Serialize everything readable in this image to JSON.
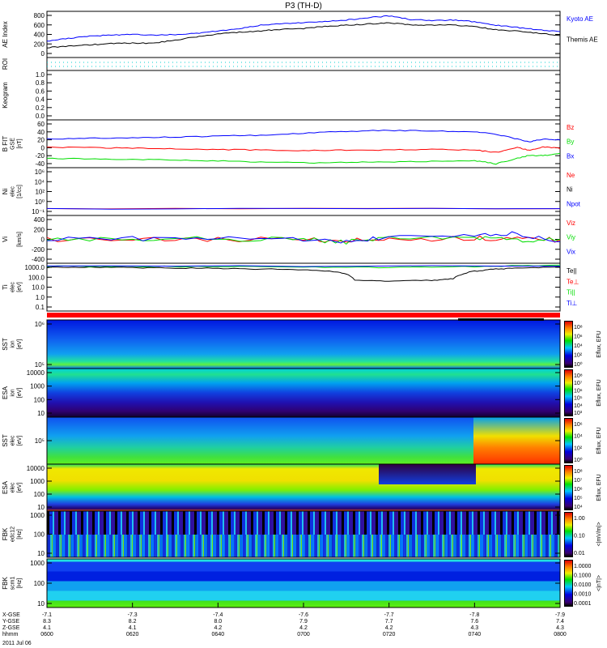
{
  "title": "P3 (TH-D)",
  "chart_data": [
    {
      "type": "line",
      "ylabel": "AE Index",
      "ylim": [
        0,
        800
      ],
      "yticks": [
        "800",
        "600",
        "400",
        "200",
        "0"
      ],
      "series": [
        {
          "name": "Kyoto AE",
          "color": "#0000ff",
          "x": [
            0,
            5,
            10,
            15,
            20,
            25,
            30,
            35,
            40,
            45,
            50,
            55,
            60,
            65,
            70,
            75,
            80,
            85,
            90,
            95,
            100,
            105,
            110,
            115,
            120
          ],
          "values": [
            280,
            330,
            370,
            390,
            400,
            390,
            395,
            420,
            460,
            500,
            560,
            590,
            600,
            620,
            650,
            690,
            720,
            660,
            640,
            650,
            620,
            560,
            520,
            480,
            450
          ]
        },
        {
          "name": "Themis AE",
          "color": "#000000",
          "x": [
            0,
            5,
            10,
            15,
            20,
            25,
            30,
            35,
            40,
            45,
            50,
            55,
            60,
            65,
            70,
            75,
            80,
            85,
            90,
            95,
            100,
            105,
            110,
            115,
            120
          ],
          "values": [
            170,
            200,
            220,
            240,
            250,
            250,
            300,
            360,
            410,
            440,
            460,
            490,
            500,
            540,
            560,
            580,
            600,
            570,
            560,
            560,
            540,
            480,
            460,
            420,
            380
          ]
        }
      ]
    },
    {
      "type": "line",
      "ylabel": "ROI",
      "series": []
    },
    {
      "type": "line",
      "ylabel": "Keogram",
      "ylim": [
        0,
        1
      ],
      "yticks": [
        "1.0",
        "0.8",
        "0.6",
        "0.4",
        "0.2",
        "0.0"
      ],
      "series": []
    },
    {
      "type": "line",
      "ylabel": "B FIT",
      "ylabel2": "GSE",
      "units": "[nT]",
      "ylim": [
        -40,
        60
      ],
      "yticks": [
        "60",
        "40",
        "20",
        "0",
        "-20",
        "-40"
      ],
      "series": [
        {
          "name": "Bz",
          "color": "#ff0000",
          "x": [
            0,
            10,
            20,
            30,
            40,
            50,
            60,
            70,
            80,
            90,
            100,
            105,
            110,
            113,
            116,
            120
          ],
          "values": [
            3,
            2,
            1,
            0,
            -2,
            -3,
            -4,
            -3,
            -3,
            -2,
            -3,
            -8,
            2,
            -4,
            4,
            0
          ],
          "_": 0
        },
        {
          "name": "By",
          "color": "#00dd00",
          "x": [
            0,
            10,
            20,
            30,
            40,
            50,
            60,
            70,
            80,
            90,
            100,
            105,
            110,
            113,
            116,
            120
          ],
          "values": [
            -20,
            -22,
            -23,
            -24,
            -26,
            -28,
            -30,
            -29,
            -28,
            -27,
            -25,
            -32,
            -20,
            -14,
            -15,
            -10
          ]
        },
        {
          "name": "Bx",
          "color": "#0000ff",
          "x": [
            0,
            10,
            20,
            30,
            40,
            50,
            60,
            70,
            80,
            90,
            100,
            105,
            110,
            113,
            116,
            120
          ],
          "values": [
            20,
            22,
            22,
            24,
            26,
            28,
            32,
            36,
            38,
            37,
            35,
            30,
            20,
            14,
            20,
            18
          ]
        }
      ]
    },
    {
      "type": "line",
      "ylabel": "Ni",
      "ylabel2": "elec",
      "units": "[1/cc]",
      "ylim_log10": [
        -1,
        6
      ],
      "yticks": [
        "10⁶",
        "10⁴",
        "10²",
        "10⁰",
        "10⁻¹"
      ],
      "series": [
        {
          "name": "Ne",
          "color": "#ff0000",
          "x": [
            0,
            120
          ],
          "values": [
            1,
            1
          ]
        },
        {
          "name": "Ni",
          "color": "#000000",
          "x": [],
          "values": []
        },
        {
          "name": "Npot",
          "color": "#0000ff",
          "x": [
            0,
            120
          ],
          "values": [
            1,
            1
          ]
        }
      ]
    },
    {
      "type": "line",
      "ylabel": "Vi",
      "units": "[km/s]",
      "ylim": [
        -400,
        400
      ],
      "yticks": [
        "400",
        "200",
        "0",
        "-200",
        "-400"
      ],
      "series": [
        {
          "name": "Viz",
          "color": "#ff0000",
          "x": [
            0,
            20,
            40,
            60,
            70,
            80,
            100,
            110,
            120
          ],
          "values": [
            0,
            5,
            -5,
            0,
            -20,
            0,
            20,
            10,
            -10
          ]
        },
        {
          "name": "Viy",
          "color": "#00dd00",
          "x": [
            0,
            20,
            40,
            60,
            70,
            80,
            100,
            110,
            120
          ],
          "values": [
            10,
            0,
            10,
            0,
            -40,
            10,
            40,
            -30,
            0
          ]
        },
        {
          "name": "Vix",
          "color": "#0000ff",
          "x": [
            0,
            20,
            40,
            60,
            70,
            80,
            100,
            110,
            120
          ],
          "values": [
            0,
            10,
            20,
            -10,
            -30,
            20,
            60,
            100,
            -40
          ]
        }
      ]
    },
    {
      "type": "line",
      "ylabel": "Ti",
      "ylabel2": "elec",
      "units": "[eV]",
      "ylim_log10": [
        -1.3,
        3.6
      ],
      "yticks": [
        "1000.0",
        "100.0",
        "10.0",
        "1.0",
        "0.1"
      ],
      "series": [
        {
          "name": "Te||",
          "color": "#000000",
          "x": [
            0,
            10,
            20,
            30,
            40,
            50,
            60,
            68,
            72,
            80,
            90,
            95,
            100,
            105,
            110,
            120
          ],
          "values": [
            1500,
            1500,
            1400,
            1300,
            1200,
            1000,
            900,
            500,
            80,
            60,
            70,
            100,
            600,
            1000,
            1200,
            1800
          ]
        },
        {
          "name": "Te⊥",
          "color": "#ff0000",
          "x": [],
          "values": []
        },
        {
          "name": "Ti||",
          "color": "#00dd00",
          "x": [
            0,
            20,
            40,
            60,
            80,
            100,
            110,
            120
          ],
          "values": [
            2000,
            1900,
            1800,
            1700,
            1500,
            1800,
            2200,
            2500
          ]
        },
        {
          "name": "Ti⊥",
          "color": "#0000ff",
          "x": [
            0,
            120
          ],
          "values": [
            2000,
            2000
          ]
        }
      ]
    },
    {
      "type": "heatmap",
      "ylabel": "SST",
      "ylabel2": "ion",
      "units": "[eV]",
      "yticks": [
        "10⁶",
        "10⁵"
      ],
      "colorbar": "Eflux, EFU",
      "cticks": [
        "10⁸",
        "10⁶",
        "10⁴",
        "10²",
        "10⁰"
      ]
    },
    {
      "type": "heatmap",
      "ylabel": "ESA",
      "ylabel2": "ion",
      "units": "[eV]",
      "yticks": [
        "10000",
        "1000",
        "100",
        "10"
      ],
      "colorbar": "Eflux, EFU",
      "cticks": [
        "10⁸",
        "10⁷",
        "10⁶",
        "10⁵",
        "10⁴",
        "10³"
      ]
    },
    {
      "type": "heatmap",
      "ylabel": "SST",
      "ylabel2": "elec",
      "units": "[eV]",
      "yticks": [
        "10⁵"
      ],
      "colorbar": "Eflux, EFU",
      "cticks": [
        "10⁶",
        "10⁴",
        "10²",
        "10⁰"
      ]
    },
    {
      "type": "heatmap",
      "ylabel": "ESA",
      "ylabel2": "elec",
      "units": "[eV]",
      "yticks": [
        "10000",
        "1000",
        "100",
        "10"
      ],
      "colorbar": "Eflux, EFU",
      "cticks": [
        "10⁸",
        "10⁷",
        "10⁶",
        "10⁵",
        "10⁴"
      ]
    },
    {
      "type": "heatmap",
      "ylabel": "FBK",
      "ylabel2": "edc12",
      "units": "[Hz]",
      "yticks": [
        "1000",
        "100",
        "10"
      ],
      "colorbar": "<|mV/m|>",
      "cticks": [
        "1.00",
        "0.10",
        "0.01"
      ]
    },
    {
      "type": "heatmap",
      "ylabel": "FBK",
      "ylabel2": "scm1",
      "units": "[Hz]",
      "yticks": [
        "1000",
        "100",
        "10"
      ],
      "colorbar": "<|nT|>",
      "cticks": [
        "1.0000",
        "0.1000",
        "0.0100",
        "0.0010",
        "0.0001"
      ]
    }
  ],
  "xaxis": {
    "row_labels": [
      "X-GSE",
      "Y-GSE",
      "Z-GSE",
      "hhmm"
    ],
    "date": "2011 Jul 06",
    "ticks": [
      {
        "x": "-7.1",
        "y": "8.3",
        "z": "4.1",
        "t": "0600"
      },
      {
        "x": "-7.3",
        "y": "8.2",
        "z": "4.1",
        "t": "0620"
      },
      {
        "x": "-7.4",
        "y": "8.0",
        "z": "4.2",
        "t": "0640"
      },
      {
        "x": "-7.6",
        "y": "7.9",
        "z": "4.2",
        "t": "0700"
      },
      {
        "x": "-7.7",
        "y": "7.7",
        "z": "4.2",
        "t": "0720"
      },
      {
        "x": "-7.8",
        "y": "7.6",
        "z": "4.3",
        "t": "0740"
      },
      {
        "x": "-7.9",
        "y": "7.4",
        "z": "4.3",
        "t": "0800"
      }
    ]
  }
}
